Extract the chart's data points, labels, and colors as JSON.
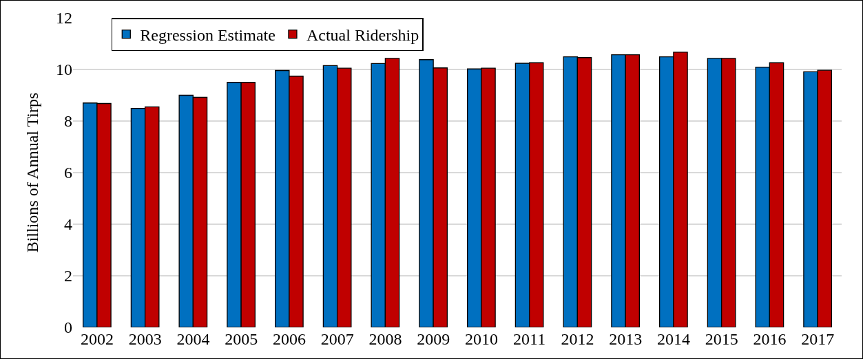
{
  "chart_data": {
    "type": "bar",
    "ylabel": "Billions of Annual Tirps",
    "categories": [
      "2002",
      "2003",
      "2004",
      "2005",
      "2006",
      "2007",
      "2008",
      "2009",
      "2010",
      "2011",
      "2012",
      "2013",
      "2014",
      "2015",
      "2016",
      "2017"
    ],
    "series": [
      {
        "name": "Regression Estimate",
        "color": "#0070c0",
        "values": [
          8.7,
          8.49,
          9.0,
          9.5,
          9.96,
          10.15,
          10.23,
          10.38,
          10.02,
          10.24,
          10.49,
          10.57,
          10.49,
          10.43,
          10.09,
          9.91
        ]
      },
      {
        "name": "Actual Ridership",
        "color": "#c00000",
        "values": [
          8.68,
          8.55,
          8.92,
          9.5,
          9.74,
          10.05,
          10.43,
          10.06,
          10.05,
          10.26,
          10.46,
          10.57,
          10.67,
          10.43,
          10.26,
          9.97
        ]
      }
    ],
    "ylim": [
      0,
      12
    ],
    "yticks": [
      0,
      2,
      4,
      6,
      8,
      10,
      12
    ],
    "grid": "y",
    "legend": "top left"
  }
}
